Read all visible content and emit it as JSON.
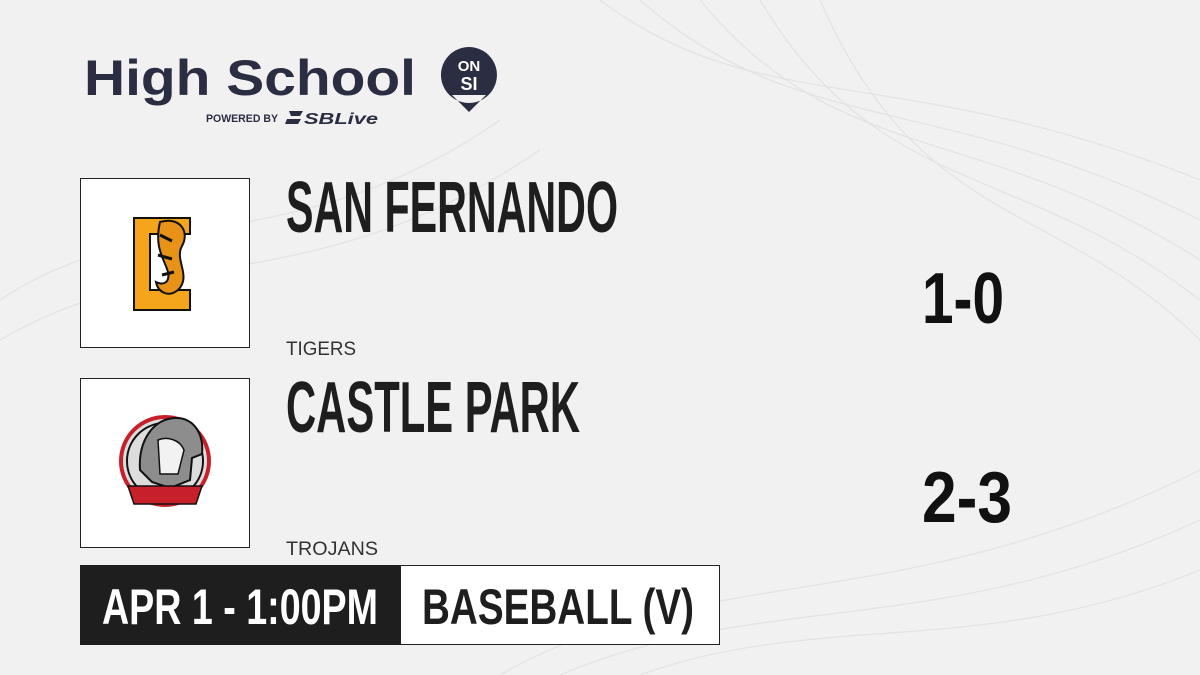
{
  "header": {
    "title": "High School",
    "badge_top": "ON",
    "badge_bottom": "SI",
    "powered_by": "POWERED BY",
    "brand": "SBLive"
  },
  "teams": [
    {
      "name": "SAN FERNANDO",
      "mascot": "TIGERS",
      "record": "1-0"
    },
    {
      "name": "CASTLE PARK",
      "mascot": "TROJANS",
      "record": "2-3"
    }
  ],
  "footer": {
    "datetime": "APR 1 - 1:00PM",
    "sport": "BASEBALL (V)"
  }
}
